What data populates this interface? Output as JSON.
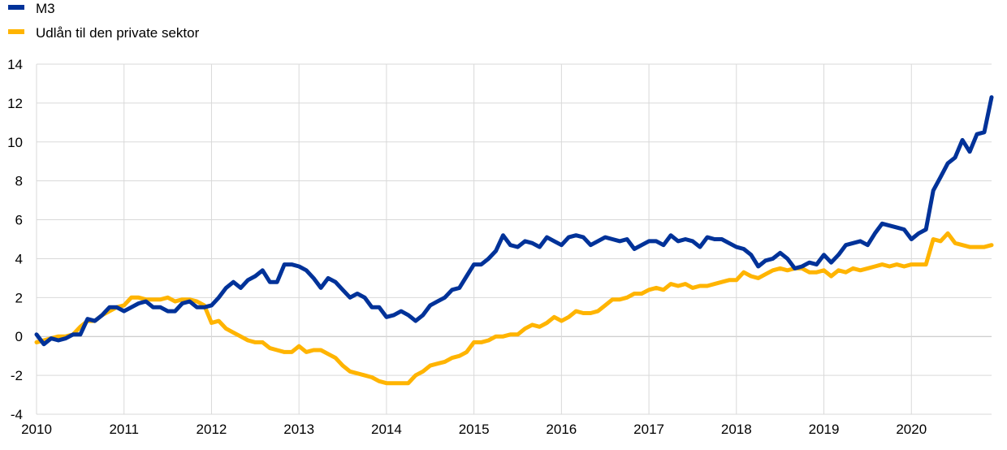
{
  "chart_data": {
    "type": "line",
    "title": "",
    "xlabel": "",
    "ylabel": "",
    "ylim": [
      -4,
      14
    ],
    "yticks": [
      "-4",
      "-2",
      "0",
      "2",
      "4",
      "6",
      "8",
      "10",
      "12",
      "14"
    ],
    "xticks": [
      "2010",
      "2011",
      "2012",
      "2013",
      "2014",
      "2015",
      "2016",
      "2017",
      "2018",
      "2019",
      "2020"
    ],
    "xlim": [
      "2010-01",
      "2020-12"
    ],
    "grid": "on",
    "legend_placement": "top-left",
    "series": [
      {
        "name": "M3",
        "color": "#003299",
        "points": [
          [
            "2010-01",
            0.1
          ],
          [
            "2010-02",
            -0.4
          ],
          [
            "2010-03",
            -0.1
          ],
          [
            "2010-04",
            -0.2
          ],
          [
            "2010-05",
            -0.1
          ],
          [
            "2010-06",
            0.1
          ],
          [
            "2010-07",
            0.1
          ],
          [
            "2010-08",
            0.9
          ],
          [
            "2010-09",
            0.8
          ],
          [
            "2010-10",
            1.1
          ],
          [
            "2010-11",
            1.5
          ],
          [
            "2010-12",
            1.5
          ],
          [
            "2011-01",
            1.3
          ],
          [
            "2011-02",
            1.5
          ],
          [
            "2011-03",
            1.7
          ],
          [
            "2011-04",
            1.8
          ],
          [
            "2011-05",
            1.5
          ],
          [
            "2011-06",
            1.5
          ],
          [
            "2011-07",
            1.3
          ],
          [
            "2011-08",
            1.3
          ],
          [
            "2011-09",
            1.7
          ],
          [
            "2011-10",
            1.8
          ],
          [
            "2011-11",
            1.5
          ],
          [
            "2011-12",
            1.5
          ],
          [
            "2012-01",
            1.6
          ],
          [
            "2012-02",
            2.0
          ],
          [
            "2012-03",
            2.5
          ],
          [
            "2012-04",
            2.8
          ],
          [
            "2012-05",
            2.5
          ],
          [
            "2012-06",
            2.9
          ],
          [
            "2012-07",
            3.1
          ],
          [
            "2012-08",
            3.4
          ],
          [
            "2012-09",
            2.8
          ],
          [
            "2012-10",
            2.8
          ],
          [
            "2012-11",
            3.7
          ],
          [
            "2012-12",
            3.7
          ],
          [
            "2013-01",
            3.6
          ],
          [
            "2013-02",
            3.4
          ],
          [
            "2013-03",
            3.0
          ],
          [
            "2013-04",
            2.5
          ],
          [
            "2013-05",
            3.0
          ],
          [
            "2013-06",
            2.8
          ],
          [
            "2013-07",
            2.4
          ],
          [
            "2013-08",
            2.0
          ],
          [
            "2013-09",
            2.2
          ],
          [
            "2013-10",
            2.0
          ],
          [
            "2013-11",
            1.5
          ],
          [
            "2013-12",
            1.5
          ],
          [
            "2014-01",
            1.0
          ],
          [
            "2014-02",
            1.1
          ],
          [
            "2014-03",
            1.3
          ],
          [
            "2014-04",
            1.1
          ],
          [
            "2014-05",
            0.8
          ],
          [
            "2014-06",
            1.1
          ],
          [
            "2014-07",
            1.6
          ],
          [
            "2014-08",
            1.8
          ],
          [
            "2014-09",
            2.0
          ],
          [
            "2014-10",
            2.4
          ],
          [
            "2014-11",
            2.5
          ],
          [
            "2014-12",
            3.1
          ],
          [
            "2015-01",
            3.7
          ],
          [
            "2015-02",
            3.7
          ],
          [
            "2015-03",
            4.0
          ],
          [
            "2015-04",
            4.4
          ],
          [
            "2015-05",
            5.2
          ],
          [
            "2015-06",
            4.7
          ],
          [
            "2015-07",
            4.6
          ],
          [
            "2015-08",
            4.9
          ],
          [
            "2015-09",
            4.8
          ],
          [
            "2015-10",
            4.6
          ],
          [
            "2015-11",
            5.1
          ],
          [
            "2015-12",
            4.9
          ],
          [
            "2016-01",
            4.7
          ],
          [
            "2016-02",
            5.1
          ],
          [
            "2016-03",
            5.2
          ],
          [
            "2016-04",
            5.1
          ],
          [
            "2016-05",
            4.7
          ],
          [
            "2016-06",
            4.9
          ],
          [
            "2016-07",
            5.1
          ],
          [
            "2016-08",
            5.0
          ],
          [
            "2016-09",
            4.9
          ],
          [
            "2016-10",
            5.0
          ],
          [
            "2016-11",
            4.5
          ],
          [
            "2016-12",
            4.7
          ],
          [
            "2017-01",
            4.9
          ],
          [
            "2017-02",
            4.9
          ],
          [
            "2017-03",
            4.7
          ],
          [
            "2017-04",
            5.2
          ],
          [
            "2017-05",
            4.9
          ],
          [
            "2017-06",
            5.0
          ],
          [
            "2017-07",
            4.9
          ],
          [
            "2017-08",
            4.6
          ],
          [
            "2017-09",
            5.1
          ],
          [
            "2017-10",
            5.0
          ],
          [
            "2017-11",
            5.0
          ],
          [
            "2017-12",
            4.8
          ],
          [
            "2018-01",
            4.6
          ],
          [
            "2018-02",
            4.5
          ],
          [
            "2018-03",
            4.2
          ],
          [
            "2018-04",
            3.6
          ],
          [
            "2018-05",
            3.9
          ],
          [
            "2018-06",
            4.0
          ],
          [
            "2018-07",
            4.3
          ],
          [
            "2018-08",
            4.0
          ],
          [
            "2018-09",
            3.5
          ],
          [
            "2018-10",
            3.6
          ],
          [
            "2018-11",
            3.8
          ],
          [
            "2018-12",
            3.7
          ],
          [
            "2019-01",
            4.2
          ],
          [
            "2019-02",
            3.8
          ],
          [
            "2019-03",
            4.2
          ],
          [
            "2019-04",
            4.7
          ],
          [
            "2019-05",
            4.8
          ],
          [
            "2019-06",
            4.9
          ],
          [
            "2019-07",
            4.7
          ],
          [
            "2019-08",
            5.3
          ],
          [
            "2019-09",
            5.8
          ],
          [
            "2019-10",
            5.7
          ],
          [
            "2019-11",
            5.6
          ],
          [
            "2019-12",
            5.5
          ],
          [
            "2020-01",
            5.0
          ],
          [
            "2020-02",
            5.3
          ],
          [
            "2020-03",
            5.5
          ],
          [
            "2020-04",
            7.5
          ],
          [
            "2020-05",
            8.2
          ],
          [
            "2020-06",
            8.9
          ],
          [
            "2020-07",
            9.2
          ],
          [
            "2020-08",
            10.1
          ],
          [
            "2020-09",
            9.5
          ],
          [
            "2020-10",
            10.4
          ],
          [
            "2020-11",
            10.5
          ],
          [
            "2020-12",
            12.3
          ]
        ]
      },
      {
        "name": "Udlån til den private sektor",
        "color": "#ffb400",
        "points": [
          [
            "2010-01",
            -0.3
          ],
          [
            "2010-02",
            -0.2
          ],
          [
            "2010-03",
            -0.1
          ],
          [
            "2010-04",
            0.0
          ],
          [
            "2010-05",
            0.0
          ],
          [
            "2010-06",
            0.1
          ],
          [
            "2010-07",
            0.5
          ],
          [
            "2010-08",
            0.8
          ],
          [
            "2010-09",
            0.8
          ],
          [
            "2010-10",
            1.1
          ],
          [
            "2010-11",
            1.3
          ],
          [
            "2010-12",
            1.5
          ],
          [
            "2011-01",
            1.6
          ],
          [
            "2011-02",
            2.0
          ],
          [
            "2011-03",
            2.0
          ],
          [
            "2011-04",
            1.9
          ],
          [
            "2011-05",
            1.9
          ],
          [
            "2011-06",
            1.9
          ],
          [
            "2011-07",
            2.0
          ],
          [
            "2011-08",
            1.8
          ],
          [
            "2011-09",
            1.9
          ],
          [
            "2011-10",
            1.9
          ],
          [
            "2011-11",
            1.8
          ],
          [
            "2011-12",
            1.6
          ],
          [
            "2012-01",
            0.7
          ],
          [
            "2012-02",
            0.8
          ],
          [
            "2012-03",
            0.4
          ],
          [
            "2012-04",
            0.2
          ],
          [
            "2012-05",
            0.0
          ],
          [
            "2012-06",
            -0.2
          ],
          [
            "2012-07",
            -0.3
          ],
          [
            "2012-08",
            -0.3
          ],
          [
            "2012-09",
            -0.6
          ],
          [
            "2012-10",
            -0.7
          ],
          [
            "2012-11",
            -0.8
          ],
          [
            "2012-12",
            -0.8
          ],
          [
            "2013-01",
            -0.5
          ],
          [
            "2013-02",
            -0.8
          ],
          [
            "2013-03",
            -0.7
          ],
          [
            "2013-04",
            -0.7
          ],
          [
            "2013-05",
            -0.9
          ],
          [
            "2013-06",
            -1.1
          ],
          [
            "2013-07",
            -1.5
          ],
          [
            "2013-08",
            -1.8
          ],
          [
            "2013-09",
            -1.9
          ],
          [
            "2013-10",
            -2.0
          ],
          [
            "2013-11",
            -2.1
          ],
          [
            "2013-12",
            -2.3
          ],
          [
            "2014-01",
            -2.4
          ],
          [
            "2014-02",
            -2.4
          ],
          [
            "2014-03",
            -2.4
          ],
          [
            "2014-04",
            -2.4
          ],
          [
            "2014-05",
            -2.0
          ],
          [
            "2014-06",
            -1.8
          ],
          [
            "2014-07",
            -1.5
          ],
          [
            "2014-08",
            -1.4
          ],
          [
            "2014-09",
            -1.3
          ],
          [
            "2014-10",
            -1.1
          ],
          [
            "2014-11",
            -1.0
          ],
          [
            "2014-12",
            -0.8
          ],
          [
            "2015-01",
            -0.3
          ],
          [
            "2015-02",
            -0.3
          ],
          [
            "2015-03",
            -0.2
          ],
          [
            "2015-04",
            0.0
          ],
          [
            "2015-05",
            0.0
          ],
          [
            "2015-06",
            0.1
          ],
          [
            "2015-07",
            0.1
          ],
          [
            "2015-08",
            0.4
          ],
          [
            "2015-09",
            0.6
          ],
          [
            "2015-10",
            0.5
          ],
          [
            "2015-11",
            0.7
          ],
          [
            "2015-12",
            1.0
          ],
          [
            "2016-01",
            0.8
          ],
          [
            "2016-02",
            1.0
          ],
          [
            "2016-03",
            1.3
          ],
          [
            "2016-04",
            1.2
          ],
          [
            "2016-05",
            1.2
          ],
          [
            "2016-06",
            1.3
          ],
          [
            "2016-07",
            1.6
          ],
          [
            "2016-08",
            1.9
          ],
          [
            "2016-09",
            1.9
          ],
          [
            "2016-10",
            2.0
          ],
          [
            "2016-11",
            2.2
          ],
          [
            "2016-12",
            2.2
          ],
          [
            "2017-01",
            2.4
          ],
          [
            "2017-02",
            2.5
          ],
          [
            "2017-03",
            2.4
          ],
          [
            "2017-04",
            2.7
          ],
          [
            "2017-05",
            2.6
          ],
          [
            "2017-06",
            2.7
          ],
          [
            "2017-07",
            2.5
          ],
          [
            "2017-08",
            2.6
          ],
          [
            "2017-09",
            2.6
          ],
          [
            "2017-10",
            2.7
          ],
          [
            "2017-11",
            2.8
          ],
          [
            "2017-12",
            2.9
          ],
          [
            "2018-01",
            2.9
          ],
          [
            "2018-02",
            3.3
          ],
          [
            "2018-03",
            3.1
          ],
          [
            "2018-04",
            3.0
          ],
          [
            "2018-05",
            3.2
          ],
          [
            "2018-06",
            3.4
          ],
          [
            "2018-07",
            3.5
          ],
          [
            "2018-08",
            3.4
          ],
          [
            "2018-09",
            3.5
          ],
          [
            "2018-10",
            3.5
          ],
          [
            "2018-11",
            3.3
          ],
          [
            "2018-12",
            3.3
          ],
          [
            "2019-01",
            3.4
          ],
          [
            "2019-02",
            3.1
          ],
          [
            "2019-03",
            3.4
          ],
          [
            "2019-04",
            3.3
          ],
          [
            "2019-05",
            3.5
          ],
          [
            "2019-06",
            3.4
          ],
          [
            "2019-07",
            3.5
          ],
          [
            "2019-08",
            3.6
          ],
          [
            "2019-09",
            3.7
          ],
          [
            "2019-10",
            3.6
          ],
          [
            "2019-11",
            3.7
          ],
          [
            "2019-12",
            3.6
          ],
          [
            "2020-01",
            3.7
          ],
          [
            "2020-02",
            3.7
          ],
          [
            "2020-03",
            3.7
          ],
          [
            "2020-04",
            5.0
          ],
          [
            "2020-05",
            4.9
          ],
          [
            "2020-06",
            5.3
          ],
          [
            "2020-07",
            4.8
          ],
          [
            "2020-08",
            4.7
          ],
          [
            "2020-09",
            4.6
          ],
          [
            "2020-10",
            4.6
          ],
          [
            "2020-11",
            4.6
          ],
          [
            "2020-12",
            4.7
          ]
        ]
      }
    ]
  }
}
